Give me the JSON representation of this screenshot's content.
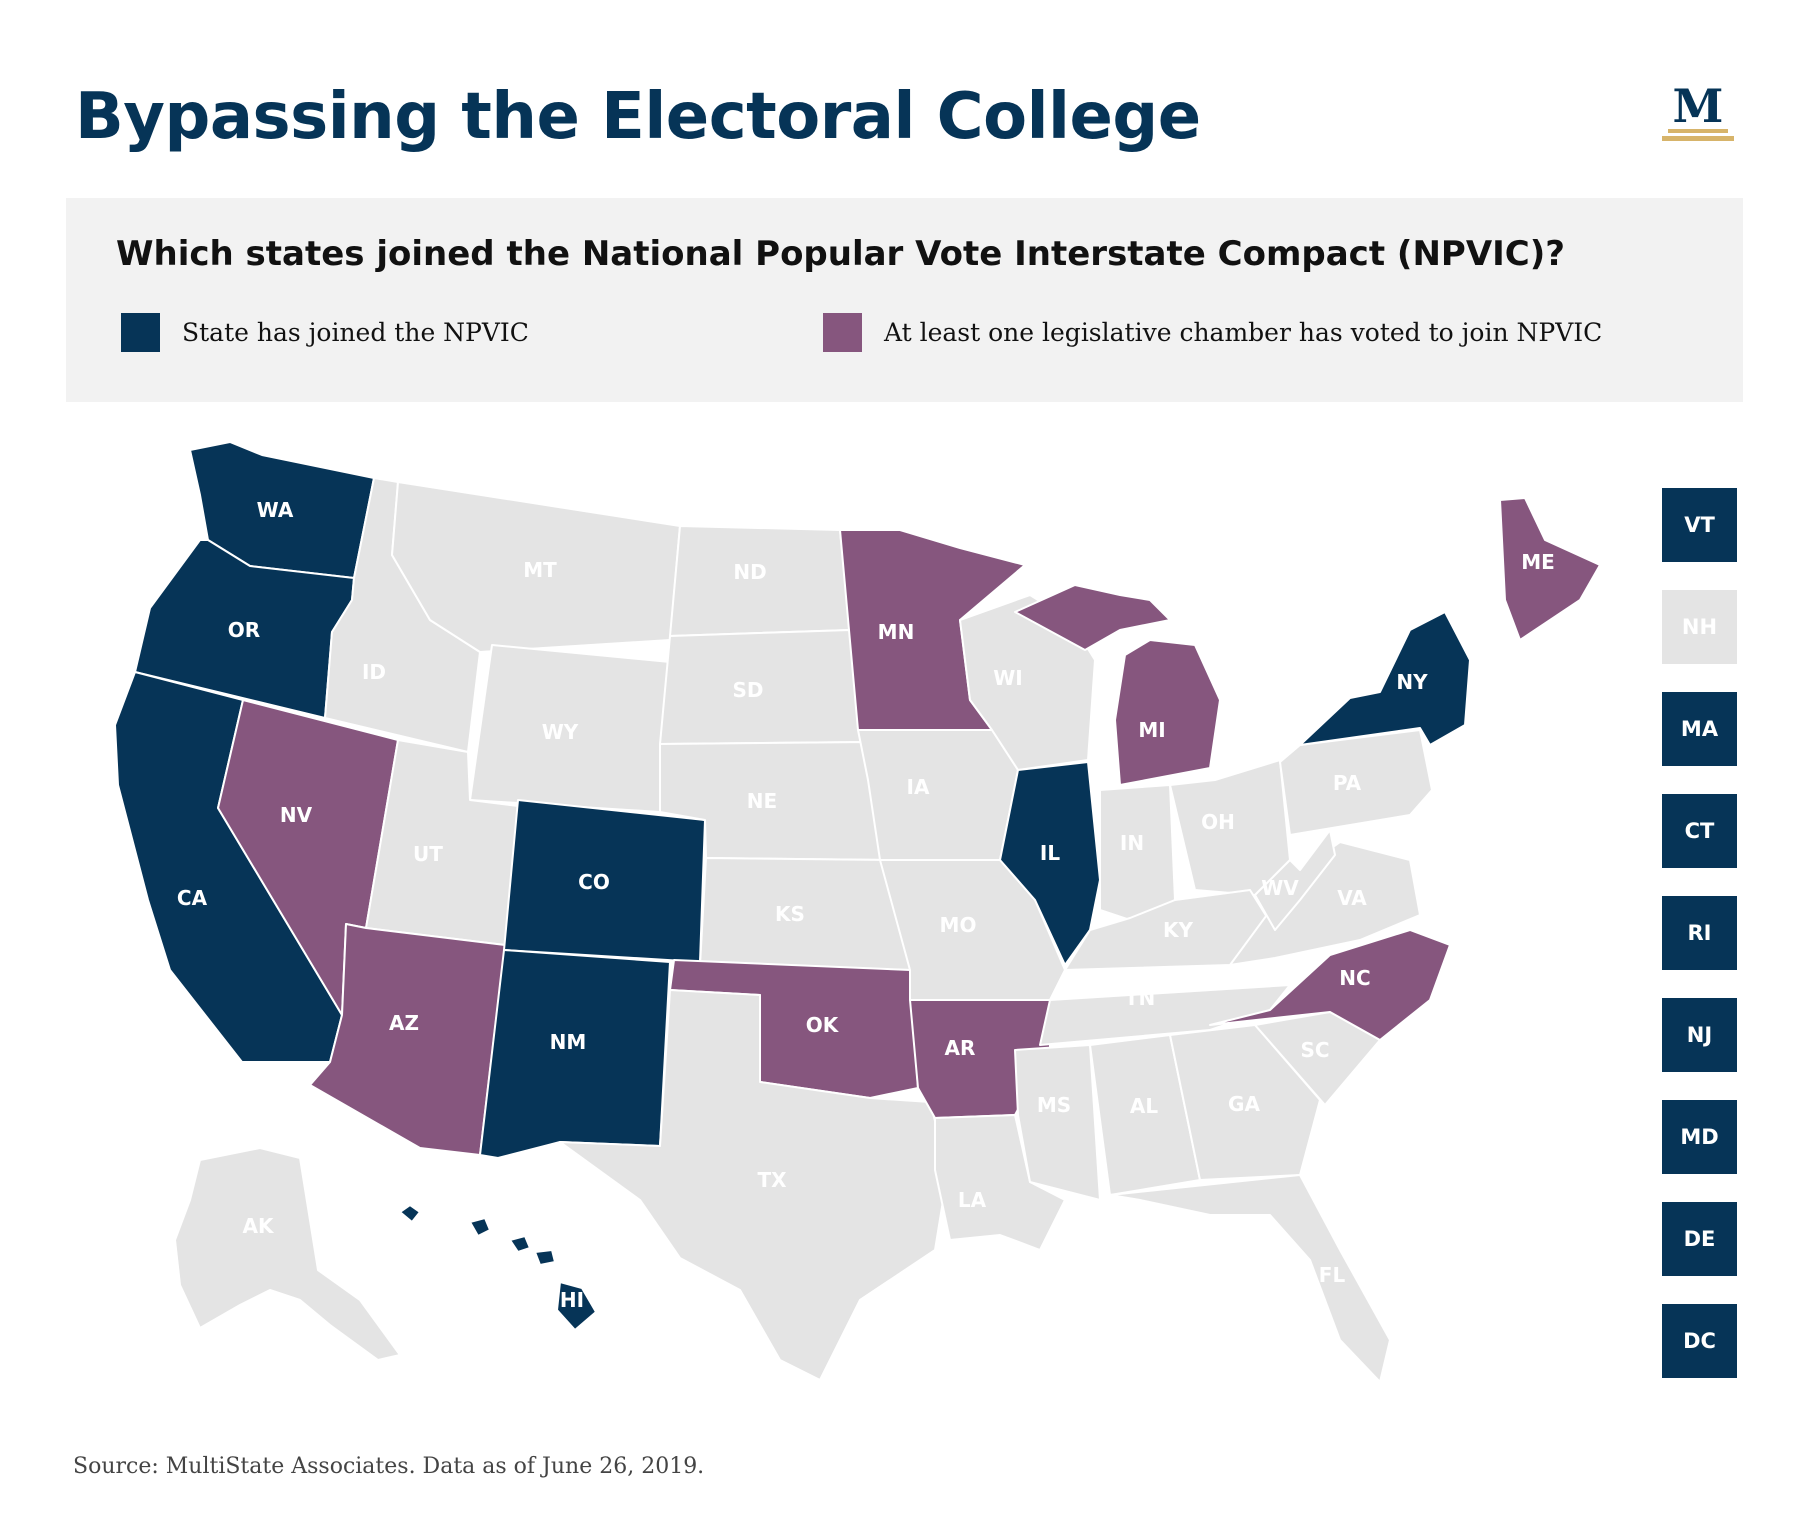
{
  "header": {
    "title": "Bypassing the Electoral College"
  },
  "legend": {
    "question": "Which states joined the National Popular Vote Interstate Compact (NPVIC)?",
    "items": [
      {
        "label": "State has joined the NPVIC",
        "color": "#063457"
      },
      {
        "label": "At least one legislative chamber has voted to join NPVIC",
        "color": "#86567e"
      }
    ]
  },
  "logo": {
    "icon": "multistate-logo-icon",
    "letter": "M",
    "color": "#063457",
    "accent": "#d7b46a"
  },
  "colors": {
    "joined": "#063457",
    "chamber": "#86567e",
    "none": "#e4e4e4",
    "label_light": "#ffffff"
  },
  "map": {
    "states": [
      {
        "abbr": "WA",
        "status": "joined"
      },
      {
        "abbr": "OR",
        "status": "joined"
      },
      {
        "abbr": "CA",
        "status": "joined"
      },
      {
        "abbr": "NV",
        "status": "chamber"
      },
      {
        "abbr": "ID",
        "status": "none"
      },
      {
        "abbr": "MT",
        "status": "none"
      },
      {
        "abbr": "WY",
        "status": "none"
      },
      {
        "abbr": "UT",
        "status": "none"
      },
      {
        "abbr": "AZ",
        "status": "chamber"
      },
      {
        "abbr": "CO",
        "status": "joined"
      },
      {
        "abbr": "NM",
        "status": "joined"
      },
      {
        "abbr": "ND",
        "status": "none"
      },
      {
        "abbr": "SD",
        "status": "none"
      },
      {
        "abbr": "NE",
        "status": "none"
      },
      {
        "abbr": "KS",
        "status": "none"
      },
      {
        "abbr": "OK",
        "status": "chamber"
      },
      {
        "abbr": "TX",
        "status": "none"
      },
      {
        "abbr": "MN",
        "status": "chamber"
      },
      {
        "abbr": "IA",
        "status": "none"
      },
      {
        "abbr": "MO",
        "status": "none"
      },
      {
        "abbr": "AR",
        "status": "chamber"
      },
      {
        "abbr": "LA",
        "status": "none"
      },
      {
        "abbr": "WI",
        "status": "none"
      },
      {
        "abbr": "IL",
        "status": "joined"
      },
      {
        "abbr": "MI",
        "status": "chamber"
      },
      {
        "abbr": "IN",
        "status": "none"
      },
      {
        "abbr": "OH",
        "status": "none"
      },
      {
        "abbr": "KY",
        "status": "none"
      },
      {
        "abbr": "TN",
        "status": "none"
      },
      {
        "abbr": "MS",
        "status": "none"
      },
      {
        "abbr": "AL",
        "status": "none"
      },
      {
        "abbr": "GA",
        "status": "none"
      },
      {
        "abbr": "FL",
        "status": "none"
      },
      {
        "abbr": "SC",
        "status": "none"
      },
      {
        "abbr": "NC",
        "status": "chamber"
      },
      {
        "abbr": "VA",
        "status": "none"
      },
      {
        "abbr": "WV",
        "status": "none"
      },
      {
        "abbr": "PA",
        "status": "none"
      },
      {
        "abbr": "NY",
        "status": "joined"
      },
      {
        "abbr": "ME",
        "status": "chamber"
      },
      {
        "abbr": "AK",
        "status": "none"
      },
      {
        "abbr": "HI",
        "status": "joined"
      }
    ],
    "small_states": [
      {
        "abbr": "VT",
        "status": "joined"
      },
      {
        "abbr": "NH",
        "status": "none"
      },
      {
        "abbr": "MA",
        "status": "joined"
      },
      {
        "abbr": "CT",
        "status": "joined"
      },
      {
        "abbr": "RI",
        "status": "joined"
      },
      {
        "abbr": "NJ",
        "status": "joined"
      },
      {
        "abbr": "MD",
        "status": "joined"
      },
      {
        "abbr": "DE",
        "status": "joined"
      },
      {
        "abbr": "DC",
        "status": "joined"
      }
    ]
  },
  "footer": {
    "source": "Source: MultiState Associates. Data as of June 26, 2019."
  }
}
